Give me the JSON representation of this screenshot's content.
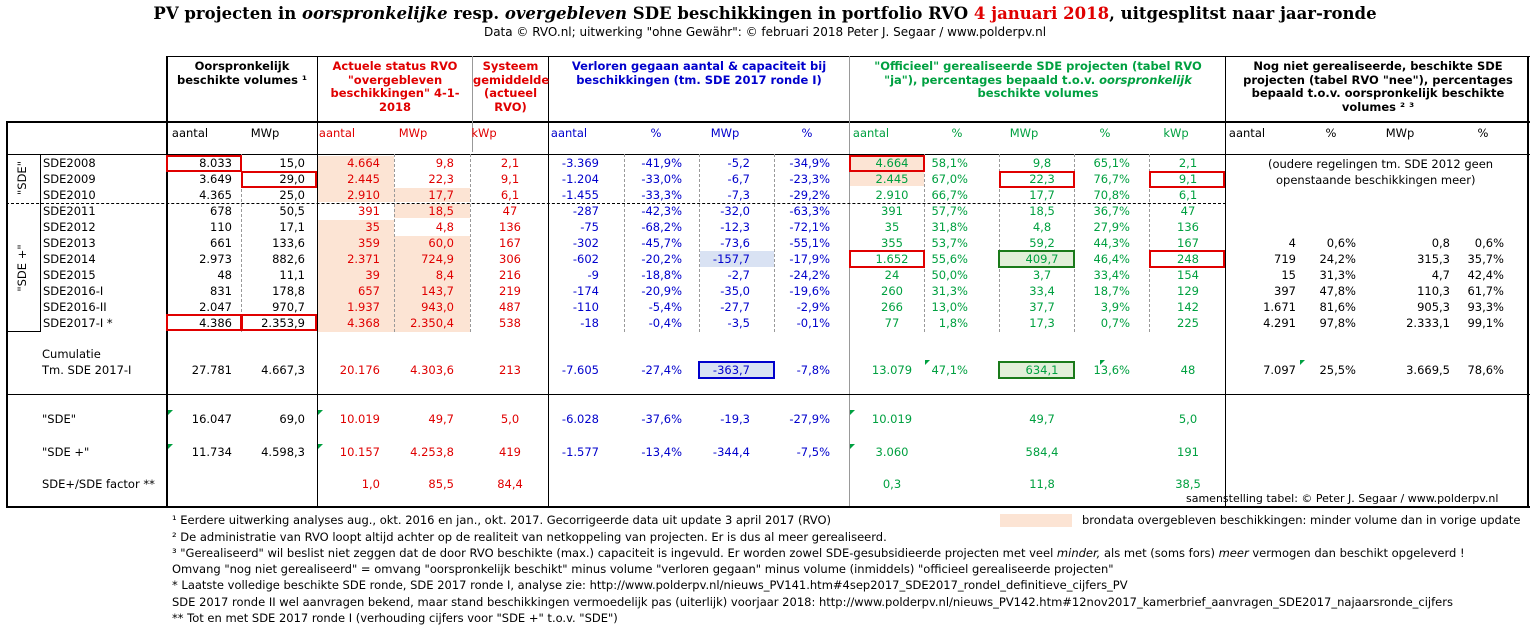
{
  "title": {
    "p1": "PV projecten in ",
    "p2": "oorspronkelijke",
    "p3": " resp. ",
    "p4": "overgebleven",
    "p5": " SDE beschikkingen in portfolio RVO ",
    "p6": "4 januari 2018",
    "p7": ", uitgesplitst naar jaar-ronde"
  },
  "subtitle": "Data © RVO.nl; uitwerking \"ohne Gewähr\": © februari 2018 Peter J. Segaar / www.polderpv.nl",
  "headers": {
    "orig": "Oorspronkelijk beschikte volumes ¹",
    "actueel": "Actuele status RVO \"overgebleven beschikkingen\" 4-1-2018",
    "systeem": "Systeem gemiddelde (actueel RVO)",
    "verloren": "Verloren gegaan aantal & capaciteit bij beschikkingen (tm. SDE 2017 ronde I)",
    "officieel_1": "\"Officieel\" gerealiseerde SDE projecten (tabel RVO \"ja\"), percentages bepaald t.o.v. ",
    "officieel_2": "oorspronkelijk",
    "officieel_3": " beschikte volumes",
    "nognniet": "Nog niet gerealiseerde, beschikte SDE projecten (tabel RVO \"nee\"), percentages bepaald t.o.v. oorspronkelijk beschikte volumes ² ³"
  },
  "subheaders": [
    "aantal",
    "MWp",
    "aantal",
    "MWp",
    "kWp",
    "aantal",
    "%",
    "MWp",
    "%",
    "aantal",
    "%",
    "MWp",
    "%",
    "kWp",
    "aantal",
    "%",
    "MWp",
    "%"
  ],
  "group_labels": {
    "sde": "\"SDE\"",
    "sdeplus": "\"SDE +\""
  },
  "rows": [
    {
      "label": "SDE2008",
      "v": [
        "8.033",
        "15,0",
        "4.664",
        "9,8",
        "2,1",
        "-3.369",
        "-41,9%",
        "-5,2",
        "-34,9%",
        "4.664",
        "58,1%",
        "9,8",
        "65,1%",
        "2,1",
        "",
        "",
        "",
        ""
      ]
    },
    {
      "label": "SDE2009",
      "v": [
        "3.649",
        "29,0",
        "2.445",
        "22,3",
        "9,1",
        "-1.204",
        "-33,0%",
        "-6,7",
        "-23,3%",
        "2.445",
        "67,0%",
        "22,3",
        "76,7%",
        "9,1",
        "",
        "",
        "",
        ""
      ]
    },
    {
      "label": "SDE2010",
      "v": [
        "4.365",
        "25,0",
        "2.910",
        "17,7",
        "6,1",
        "-1.455",
        "-33,3%",
        "-7,3",
        "-29,2%",
        "2.910",
        "66,7%",
        "17,7",
        "70,8%",
        "6,1",
        "",
        "",
        "",
        ""
      ]
    },
    {
      "label": "SDE2011",
      "v": [
        "678",
        "50,5",
        "391",
        "18,5",
        "47",
        "-287",
        "-42,3%",
        "-32,0",
        "-63,3%",
        "391",
        "57,7%",
        "18,5",
        "36,7%",
        "47",
        "",
        "",
        "",
        ""
      ]
    },
    {
      "label": "SDE2012",
      "v": [
        "110",
        "17,1",
        "35",
        "4,8",
        "136",
        "-75",
        "-68,2%",
        "-12,3",
        "-72,1%",
        "35",
        "31,8%",
        "4,8",
        "27,9%",
        "136",
        "",
        "",
        "",
        ""
      ]
    },
    {
      "label": "SDE2013",
      "v": [
        "661",
        "133,6",
        "359",
        "60,0",
        "167",
        "-302",
        "-45,7%",
        "-73,6",
        "-55,1%",
        "355",
        "53,7%",
        "59,2",
        "44,3%",
        "167",
        "4",
        "0,6%",
        "0,8",
        "0,6%"
      ]
    },
    {
      "label": "SDE2014",
      "v": [
        "2.973",
        "882,6",
        "2.371",
        "724,9",
        "306",
        "-602",
        "-20,2%",
        "-157,7",
        "-17,9%",
        "1.652",
        "55,6%",
        "409,7",
        "46,4%",
        "248",
        "719",
        "24,2%",
        "315,3",
        "35,7%"
      ]
    },
    {
      "label": "SDE2015",
      "v": [
        "48",
        "11,1",
        "39",
        "8,4",
        "216",
        "-9",
        "-18,8%",
        "-2,7",
        "-24,2%",
        "24",
        "50,0%",
        "3,7",
        "33,4%",
        "154",
        "15",
        "31,3%",
        "4,7",
        "42,4%"
      ]
    },
    {
      "label": "SDE2016-I",
      "v": [
        "831",
        "178,8",
        "657",
        "143,7",
        "219",
        "-174",
        "-20,9%",
        "-35,0",
        "-19,6%",
        "260",
        "31,3%",
        "33,4",
        "18,7%",
        "129",
        "397",
        "47,8%",
        "110,3",
        "61,7%"
      ]
    },
    {
      "label": "SDE2016-II",
      "v": [
        "2.047",
        "970,7",
        "1.937",
        "943,0",
        "487",
        "-110",
        "-5,4%",
        "-27,7",
        "-2,9%",
        "266",
        "13,0%",
        "37,7",
        "3,9%",
        "142",
        "1.671",
        "81,6%",
        "905,3",
        "93,3%"
      ]
    },
    {
      "label": "SDE2017-I *",
      "v": [
        "4.386",
        "2.353,9",
        "4.368",
        "2.350,4",
        "538",
        "-18",
        "-0,4%",
        "-3,5",
        "-0,1%",
        "77",
        "1,8%",
        "17,3",
        "0,7%",
        "225",
        "4.291",
        "97,8%",
        "2.333,1",
        "99,1%"
      ]
    }
  ],
  "oudere_note_1": "(oudere regelingen tm. SDE 2012 geen",
  "oudere_note_2": "openstaande beschikkingen meer)",
  "cumulatie": {
    "label_1": "Cumulatie",
    "label_2": "Tm. SDE 2017-I",
    "v": [
      "27.781",
      "4.667,3",
      "20.176",
      "4.303,6",
      "213",
      "-7.605",
      "-27,4%",
      "-363,7",
      "-7,8%",
      "13.079",
      "47,1%",
      "634,1",
      "13,6%",
      "48",
      "7.097",
      "25,5%",
      "3.669,5",
      "78,6%"
    ]
  },
  "sums": [
    {
      "label": "\"SDE\"",
      "v": [
        "16.047",
        "69,0",
        "10.019",
        "49,7",
        "5,0",
        "-6.028",
        "-37,6%",
        "-19,3",
        "-27,9%",
        "10.019",
        "",
        "49,7",
        "",
        "5,0",
        "",
        "",
        "",
        ""
      ]
    },
    {
      "label": "\"SDE +\"",
      "v": [
        "11.734",
        "4.598,3",
        "10.157",
        "4.253,8",
        "419",
        "-1.577",
        "-13,4%",
        "-344,4",
        "-7,5%",
        "3.060",
        "",
        "584,4",
        "",
        "191",
        "",
        "",
        "",
        ""
      ]
    },
    {
      "label": "SDE+/SDE factor **",
      "v": [
        "",
        "",
        "1,0",
        "85,5",
        "84,4",
        "",
        "",
        "",
        "",
        "0,3",
        "",
        "11,8",
        "",
        "38,5",
        "",
        "",
        "",
        ""
      ]
    }
  ],
  "credit": "samenstelling tabel: © Peter J. Segaar / www.polderpv.nl",
  "legend_text": "brondata overgebleven beschikkingen: minder volume dan in vorige update",
  "notes": [
    "¹ Eerdere uitwerking analyses aug., okt. 2016 en jan., okt.  2017. Gecorrigeerde data uit update 3 april 2017 (RVO)",
    "² De administratie van RVO loopt altijd achter op de realiteit van netkoppeling van projecten. Er is dus al meer gerealiseerd.",
    "³ \"Gerealiseerd\" wil beslist niet zeggen dat de door RVO beschikte (max.) capaciteit is ingevuld. Er worden zowel SDE-gesubsidieerde projecten met veel ",
    "Omvang \"nog niet gerealiseerd\" = omvang \"oorspronkelijk beschikt\" minus volume \"verloren gegaan\" minus volume (inmiddels) \"officieel gerealiseerde projecten\"",
    "* Laatste volledige beschikte SDE ronde, SDE 2017 ronde I, analyse zie: http://www.polderpv.nl/nieuws_PV141.htm#4sep2017_SDE2017_rondeI_definitieve_cijfers_PV",
    "SDE 2017 ronde II wel aanvragen bekend, maar stand beschikkingen vermoedelijk pas (uiterlijk) voorjaar 2018: http://www.polderpv.nl/nieuws_PV142.htm#12nov2017_kamerbrief_aanvragen_SDE2017_najaarsronde_cijfers",
    "** Tot en met SDE 2017 ronde I (verhouding cijfers voor \"SDE +\" t.o.v. \"SDE\")"
  ],
  "note3_mid_1": "minder,",
  "note3_mid_2": " als met (soms fors) ",
  "note3_mid_3": "meer",
  "note3_end": " vermogen dan beschikt opgeleverd !"
}
